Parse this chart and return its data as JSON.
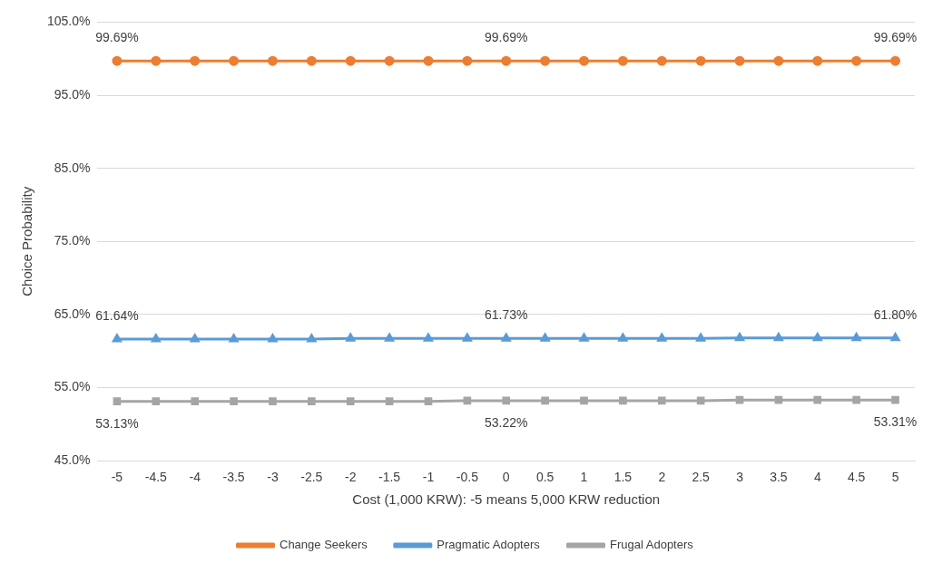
{
  "chart_data": {
    "type": "line",
    "xlabel": "Cost (1,000 KRW): -5 means 5,000 KRW reduction",
    "ylabel": "Choice Probability",
    "categories": [
      "-5",
      "-4.5",
      "-4",
      "-3.5",
      "-3",
      "-2.5",
      "-2",
      "-1.5",
      "-1",
      "-0.5",
      "0",
      "0.5",
      "1",
      "1.5",
      "2",
      "2.5",
      "3",
      "3.5",
      "4",
      "4.5",
      "5"
    ],
    "ylim": [
      45,
      105
    ],
    "yticks": [
      {
        "value": 45,
        "label": "45.0%"
      },
      {
        "value": 55,
        "label": "55.0%"
      },
      {
        "value": 65,
        "label": "65.0%"
      },
      {
        "value": 75,
        "label": "75.0%"
      },
      {
        "value": 85,
        "label": "85.0%"
      },
      {
        "value": 95,
        "label": "95.0%"
      },
      {
        "value": 105,
        "label": "105.0%"
      }
    ],
    "grid": "y",
    "legend": "bottom",
    "series": [
      {
        "name": "Change Seekers",
        "color": "#ed7d31",
        "marker": "circle",
        "values": [
          99.69,
          99.69,
          99.69,
          99.69,
          99.69,
          99.69,
          99.69,
          99.69,
          99.69,
          99.69,
          99.69,
          99.69,
          99.69,
          99.69,
          99.69,
          99.69,
          99.69,
          99.69,
          99.69,
          99.69,
          99.69
        ],
        "value_labels": [
          "99.69%",
          null,
          null,
          null,
          null,
          null,
          null,
          null,
          null,
          null,
          "99.69%",
          null,
          null,
          null,
          null,
          null,
          null,
          null,
          null,
          null,
          "99.69%"
        ]
      },
      {
        "name": "Pragmatic Adopters",
        "color": "#5b9bd5",
        "marker": "triangle",
        "values": [
          61.64,
          61.64,
          61.64,
          61.64,
          61.64,
          61.64,
          61.73,
          61.73,
          61.73,
          61.73,
          61.73,
          61.73,
          61.73,
          61.73,
          61.73,
          61.73,
          61.8,
          61.8,
          61.8,
          61.8,
          61.8
        ],
        "value_labels": [
          "61.64%",
          null,
          null,
          null,
          null,
          null,
          null,
          null,
          null,
          null,
          "61.73%",
          null,
          null,
          null,
          null,
          null,
          null,
          null,
          null,
          null,
          "61.80%"
        ]
      },
      {
        "name": "Frugal Adopters",
        "color": "#a5a5a5",
        "marker": "square",
        "values": [
          53.13,
          53.13,
          53.13,
          53.13,
          53.13,
          53.13,
          53.13,
          53.13,
          53.13,
          53.22,
          53.22,
          53.22,
          53.22,
          53.22,
          53.22,
          53.22,
          53.31,
          53.31,
          53.31,
          53.31,
          53.31
        ],
        "value_labels": [
          "53.13%",
          null,
          null,
          null,
          null,
          null,
          null,
          null,
          null,
          null,
          "53.22%",
          null,
          null,
          null,
          null,
          null,
          null,
          null,
          null,
          null,
          "53.31%"
        ]
      }
    ]
  }
}
